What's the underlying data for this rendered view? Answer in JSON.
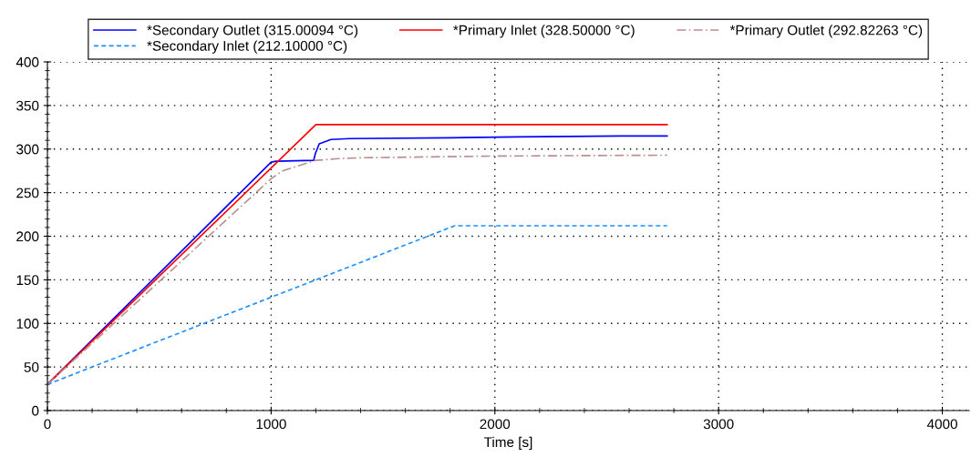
{
  "chart_data": {
    "type": "line",
    "xlabel": "Time [s]",
    "xlim": [
      0,
      4120
    ],
    "xticks": [
      0,
      1000,
      2000,
      3000,
      4000
    ],
    "ylim": [
      0,
      400
    ],
    "yticks": [
      0,
      50,
      100,
      150,
      200,
      250,
      300,
      350,
      400
    ],
    "grid": true,
    "legend": "top",
    "marker": "none",
    "series": [
      {
        "name": "*Secondary Outlet (315.00094 °C)",
        "color": "#0000ff",
        "line_style": "solid",
        "x": [
          0,
          1000,
          1022,
          1190,
          1198,
          1215,
          1267,
          1350,
          1800,
          2100,
          2560,
          2770
        ],
        "values": [
          30,
          285,
          286,
          287,
          295,
          306,
          311,
          312,
          313,
          314,
          315,
          315
        ]
      },
      {
        "name": "*Primary Inlet (328.50000 °C)",
        "color": "#ff0000",
        "line_style": "solid",
        "x": [
          0,
          1200,
          2770
        ],
        "values": [
          30,
          328,
          328
        ]
      },
      {
        "name": "*Primary Outlet (292.82263 °C)",
        "color": "#bc8f8f",
        "line_style": "dashdot",
        "x": [
          0,
          1000,
          1051,
          1198,
          1300,
          1400,
          1700,
          2000,
          2770
        ],
        "values": [
          30,
          266,
          275,
          287,
          289,
          290,
          291,
          292,
          293
        ]
      },
      {
        "name": "*Secondary Inlet (212.10000 °C)",
        "color": "#1e90ff",
        "line_style": "dashed",
        "x": [
          0,
          1820,
          2770
        ],
        "values": [
          30,
          212,
          212
        ]
      }
    ]
  }
}
